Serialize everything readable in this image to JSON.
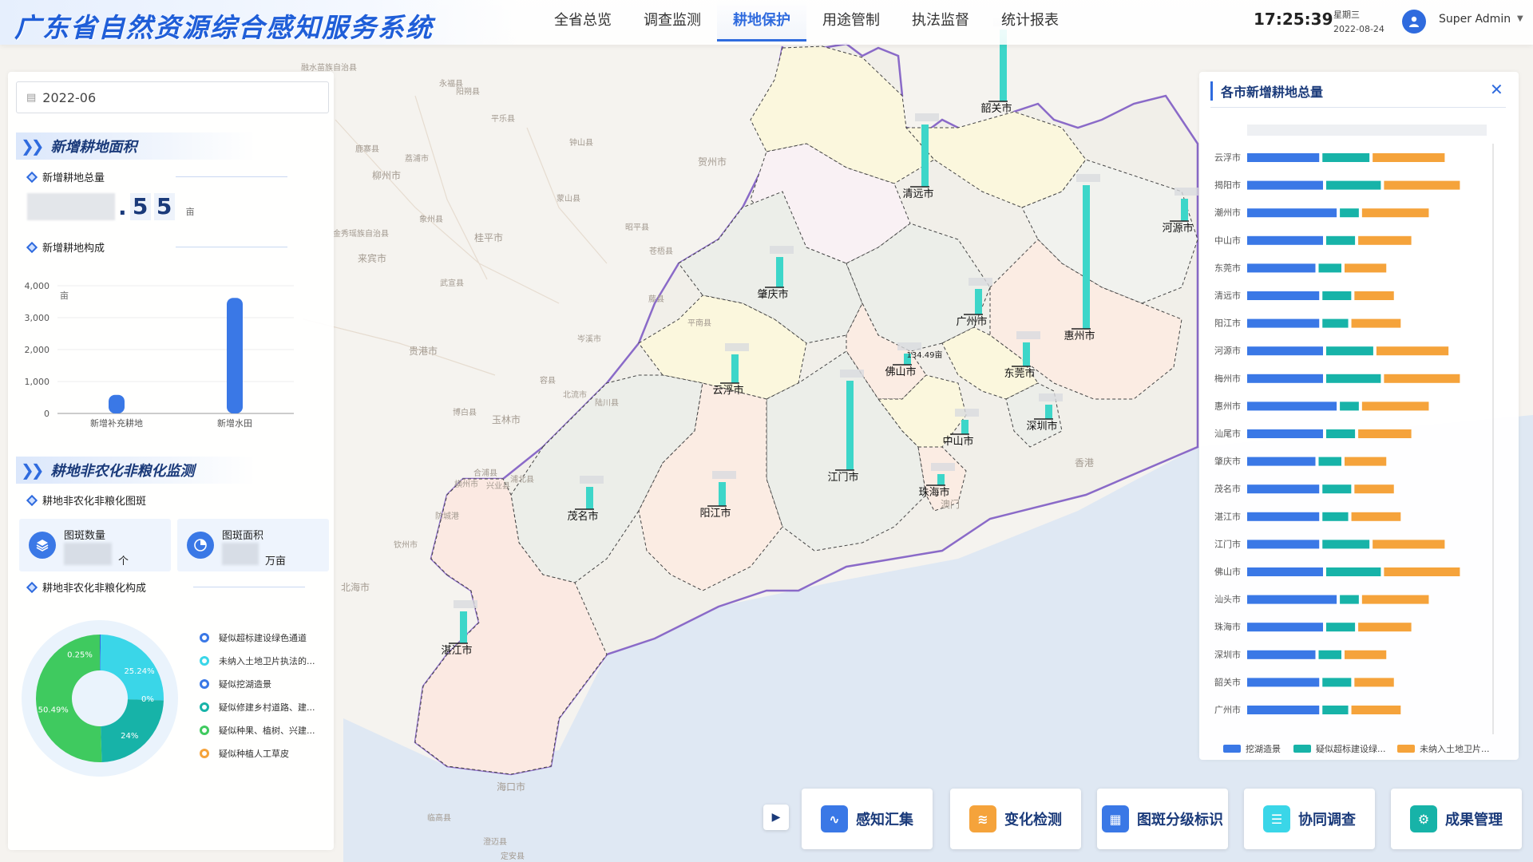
{
  "app": {
    "title": "广东省自然资源综合感知服务系统"
  },
  "nav": [
    {
      "label": "全省总览",
      "active": false
    },
    {
      "label": "调查监测",
      "active": false
    },
    {
      "label": "耕地保护",
      "active": true
    },
    {
      "label": "用途管制",
      "active": false
    },
    {
      "label": "执法监督",
      "active": false
    },
    {
      "label": "统计报表",
      "active": false
    }
  ],
  "status": {
    "time": "17:25:39",
    "weekday": "星期三",
    "date": "2022-08-24",
    "user": "Super Admin"
  },
  "left": {
    "date_value": "2022-06",
    "section1": "新增耕地面积",
    "total_label": "新增耕地总量",
    "total_digits": [
      ".",
      "5",
      "5"
    ],
    "total_unit": "亩",
    "composition_label": "新增耕地构成",
    "section2": "耕地非农化非粮化监测",
    "patch_label": "耕地非农化非粮化图斑",
    "patch_count_label": "图斑数量",
    "patch_count_unit": "个",
    "patch_area_label": "图斑面积",
    "patch_area_unit": "万亩",
    "composition2_label": "耕地非农化非粮化构成",
    "legend": [
      {
        "label": "疑似超标建设绿色通道",
        "color": "#3a78e6"
      },
      {
        "label": "未纳入土地卫片执法的...",
        "color": "#3ad6e8"
      },
      {
        "label": "疑似挖湖造景",
        "color": "#3a78e6"
      },
      {
        "label": "疑似修建乡村道路、建...",
        "color": "#17b3a8"
      },
      {
        "label": "疑似种果、植树、兴建...",
        "color": "#3fca5f"
      },
      {
        "label": "疑似种植人工草皮",
        "color": "#f5a33b"
      }
    ]
  },
  "chart_data": [
    {
      "type": "bar",
      "title": "新增耕地构成",
      "ylabel": "亩",
      "categories": [
        "新增补充耕地",
        "新增水田"
      ],
      "values": [
        580,
        3620
      ],
      "ylim": [
        0,
        4000
      ],
      "yticks": [
        "0",
        "1,000",
        "2,000",
        "3,000",
        "4,000"
      ],
      "color": "#3a78e6"
    },
    {
      "type": "pie",
      "title": "耕地非农化非粮化构成",
      "slices": [
        {
          "label": "0.25%",
          "value": 0.25,
          "color": "#2f6bde"
        },
        {
          "label": "25.24%",
          "value": 25.24,
          "color": "#3ad6e8"
        },
        {
          "label": "0%",
          "value": 0.02,
          "color": "#2f6bde"
        },
        {
          "label": "24%",
          "value": 24.0,
          "color": "#17b3a8"
        },
        {
          "label": "50.49%",
          "value": 50.49,
          "color": "#3fca5f"
        }
      ]
    },
    {
      "type": "bar",
      "orientation": "horizontal",
      "stacked": true,
      "title": "各市新增耕地总量",
      "categories": [
        "云浮市",
        "揭阳市",
        "潮州市",
        "中山市",
        "东莞市",
        "清远市",
        "阳江市",
        "河源市",
        "梅州市",
        "惠州市",
        "汕尾市",
        "肇庆市",
        "茂名市",
        "湛江市",
        "江门市",
        "佛山市",
        "汕头市",
        "珠海市",
        "深圳市",
        "韶关市",
        "广州市"
      ],
      "series": [
        {
          "name": "挖湖造景",
          "color": "#3a78e6",
          "values": [
            95,
            100,
            118,
            100,
            90,
            95,
            95,
            100,
            100,
            118,
            100,
            90,
            95,
            95,
            95,
            100,
            118,
            100,
            90,
            95,
            95
          ]
        },
        {
          "name": "疑似超标建设绿...",
          "color": "#17b3a8",
          "values": [
            62,
            72,
            25,
            38,
            30,
            38,
            34,
            62,
            72,
            25,
            38,
            30,
            38,
            34,
            62,
            72,
            25,
            38,
            30,
            38,
            34
          ]
        },
        {
          "name": "未纳入土地卫片...",
          "color": "#f5a33b",
          "values": [
            95,
            100,
            88,
            70,
            55,
            52,
            65,
            95,
            100,
            88,
            70,
            55,
            52,
            65,
            95,
            100,
            88,
            70,
            55,
            52,
            65
          ]
        }
      ]
    }
  ],
  "right": {
    "title": "各市新增耕地总量",
    "close_icon": "close-icon"
  },
  "map": {
    "cities": [
      {
        "name": "韶关市"
      },
      {
        "name": "清远市"
      },
      {
        "name": "河源市"
      },
      {
        "name": "肇庆市"
      },
      {
        "name": "广州市"
      },
      {
        "name": "惠州市"
      },
      {
        "name": "佛山市"
      },
      {
        "name": "东莞市"
      },
      {
        "name": "云浮市"
      },
      {
        "name": "深圳市"
      },
      {
        "name": "中山市"
      },
      {
        "name": "江门市"
      },
      {
        "name": "茂名市"
      },
      {
        "name": "阳江市"
      },
      {
        "name": "珠海市"
      },
      {
        "name": "湛江市"
      }
    ],
    "bar_value_label": "134.49亩",
    "bg_places": [
      "柳州市",
      "来宾市",
      "贵港市",
      "玉林市",
      "北海市",
      "海口市",
      "贺州市",
      "香港",
      "澳门",
      "桂平市",
      "防城港",
      "钦州市",
      "永福县",
      "融水苗族自治县",
      "阳朔县",
      "荔浦市",
      "平乐县",
      "钟山县",
      "鹿寨县",
      "象州县",
      "武宣县",
      "金秀瑶族自治县",
      "蒙山县",
      "昭平县",
      "苍梧县",
      "藤县",
      "岑溪市",
      "容县",
      "北流市",
      "陆川县",
      "博白县",
      "合浦县",
      "浦北县",
      "兴业县",
      "横州市",
      "平南县",
      "临高县",
      "澄迈县",
      "定安县"
    ]
  },
  "toolbar": [
    {
      "label": "感知汇集",
      "icon": "pulse-chart-icon",
      "color": "#3a78e6"
    },
    {
      "label": "变化检测",
      "icon": "change-detect-icon",
      "color": "#f5a33b"
    },
    {
      "label": "图斑分级标识",
      "icon": "grade-map-icon",
      "color": "#3a78e6"
    },
    {
      "label": "协同调查",
      "icon": "collab-survey-icon",
      "color": "#3ad6e8"
    },
    {
      "label": "成果管理",
      "icon": "gear-icon",
      "color": "#17b3a8"
    }
  ]
}
